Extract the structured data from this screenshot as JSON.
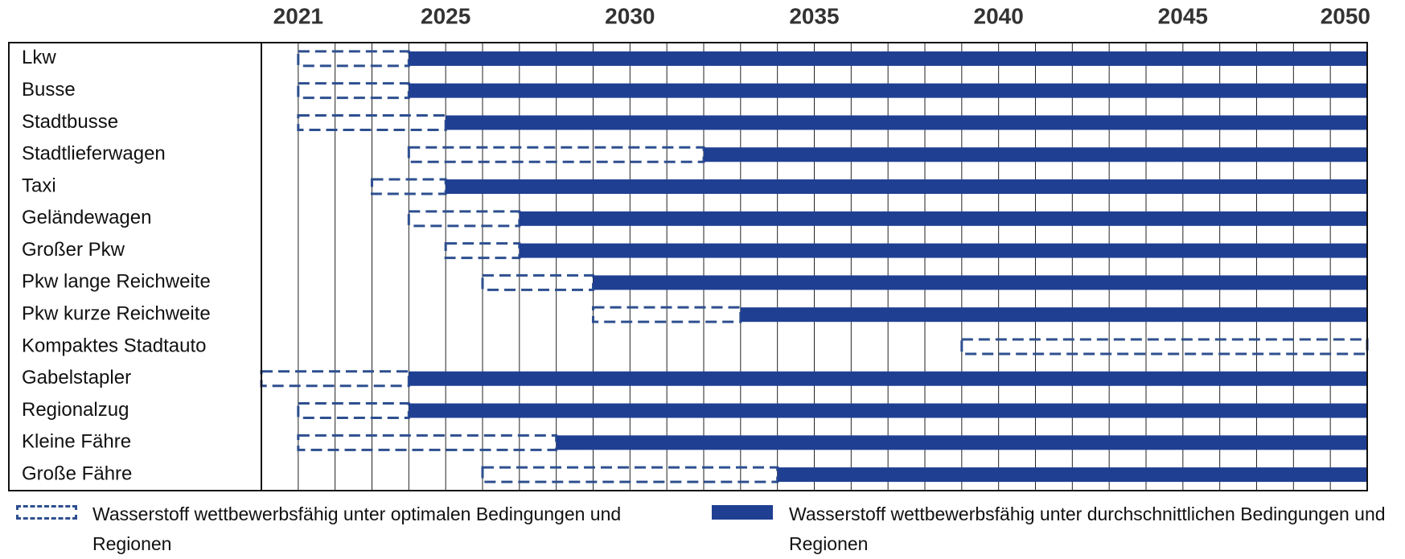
{
  "chart_data": {
    "type": "gantt",
    "categories": [
      "Lkw",
      "Busse",
      "Stadtbusse",
      "Stadtlieferwagen",
      "Taxi",
      "Geländewagen",
      "Großer Pkw",
      "Pkw lange Reichweite",
      "Pkw kurze Reichweite",
      "Kompaktes Stadtauto",
      "Gabelstapler",
      "Regionalzug",
      "Kleine Fähre",
      "Große Fähre"
    ],
    "series": [
      {
        "name": "Wasserstoff wettbewerbsfähig unter optimalen Bedingungen und Regionen",
        "color": "#2e4f8f",
        "style": "dashed",
        "values": [
          [
            2021,
            2024
          ],
          [
            2021,
            2024
          ],
          [
            2021,
            2025
          ],
          [
            2024,
            2032
          ],
          [
            2023,
            2025
          ],
          [
            2024,
            2027
          ],
          [
            2025,
            2027
          ],
          [
            2026,
            2029
          ],
          [
            2029,
            2033
          ],
          [
            2039,
            2050
          ],
          [
            2020,
            2024
          ],
          [
            2021,
            2024
          ],
          [
            2021,
            2028
          ],
          [
            2026,
            2034
          ]
        ]
      },
      {
        "name": "Wasserstoff wettbewerbsfähig unter durchschnittlichen Bedingungen und Regionen",
        "color": "#1f3f93",
        "style": "solid",
        "values": [
          [
            2024,
            2050
          ],
          [
            2024,
            2050
          ],
          [
            2025,
            2050
          ],
          [
            2032,
            2050
          ],
          [
            2025,
            2050
          ],
          [
            2027,
            2050
          ],
          [
            2027,
            2050
          ],
          [
            2029,
            2050
          ],
          [
            2033,
            2050
          ],
          null,
          [
            2024,
            2050
          ],
          [
            2024,
            2050
          ],
          [
            2028,
            2050
          ],
          [
            2034,
            2050
          ]
        ]
      }
    ],
    "xlim": [
      2020,
      2050
    ],
    "xticks": [
      2021,
      2025,
      2030,
      2035,
      2040,
      2045,
      2050
    ],
    "xgrid": [
      2021,
      2022,
      2023,
      2024,
      2025,
      2026,
      2027,
      2028,
      2029,
      2030,
      2031,
      2032,
      2033,
      2034,
      2035,
      2036,
      2037,
      2038,
      2039,
      2040,
      2041,
      2042,
      2043,
      2044,
      2045,
      2046,
      2047,
      2048,
      2049
    ],
    "grid": true
  }
}
